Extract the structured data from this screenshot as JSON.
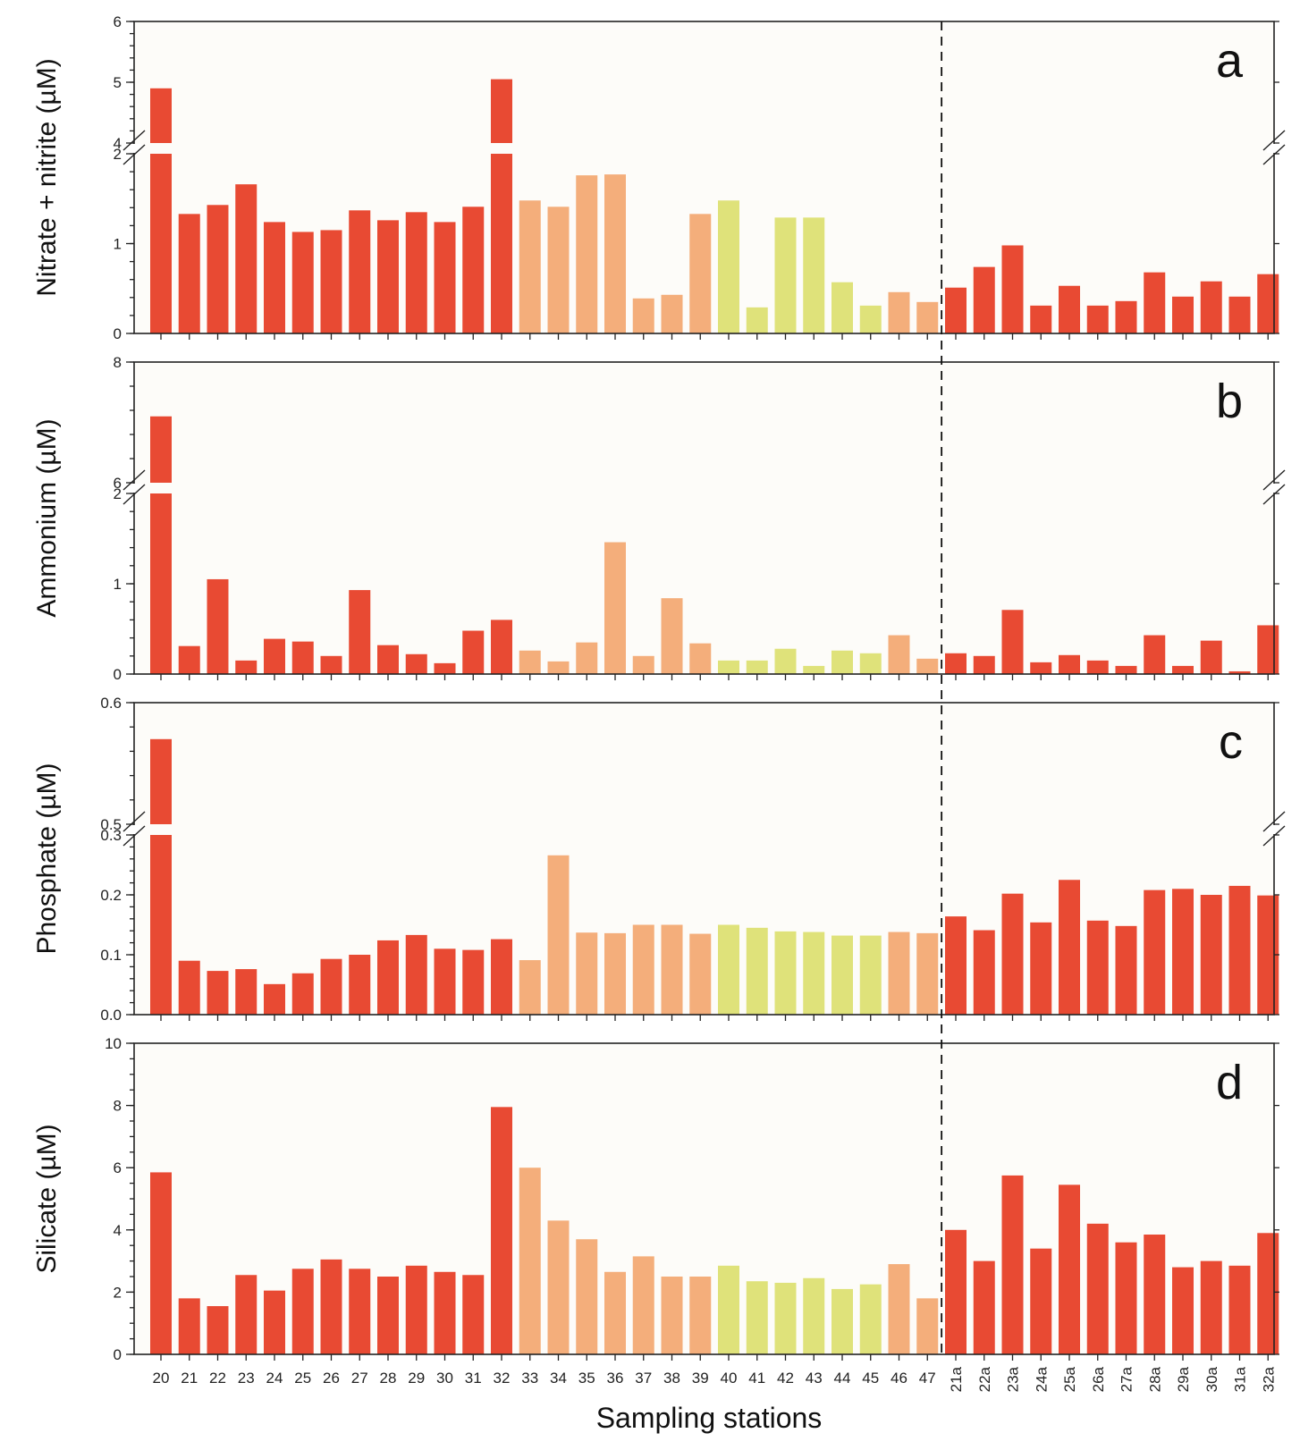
{
  "chart_data": {
    "type": "bar",
    "xlabel": "Sampling stations",
    "categories": [
      "20",
      "21",
      "22",
      "23",
      "24",
      "25",
      "26",
      "27",
      "28",
      "29",
      "30",
      "31",
      "32",
      "33",
      "34",
      "35",
      "36",
      "37",
      "38",
      "39",
      "40",
      "41",
      "42",
      "43",
      "44",
      "45",
      "46",
      "47",
      "21a",
      "22a",
      "23a",
      "24a",
      "25a",
      "26a",
      "27a",
      "28a",
      "29a",
      "30a",
      "31a",
      "32a"
    ],
    "groups": [
      "A",
      "A",
      "A",
      "A",
      "A",
      "A",
      "A",
      "A",
      "A",
      "A",
      "A",
      "A",
      "A",
      "B",
      "B",
      "B",
      "B",
      "B",
      "B",
      "B",
      "C",
      "C",
      "C",
      "C",
      "C",
      "C",
      "B",
      "B",
      "A",
      "A",
      "A",
      "A",
      "A",
      "A",
      "A",
      "A",
      "A",
      "A",
      "A",
      "A"
    ],
    "group_colors": {
      "A": "#e84a33",
      "B": "#f4ae7b",
      "C": "#dfe27a"
    },
    "divider_after_category": "47",
    "panels": [
      {
        "letter": "a",
        "ylabel": "Nitrate + nitrite (µM)",
        "lower_range": [
          0,
          2
        ],
        "upper_range": [
          4,
          6
        ],
        "lower_ticks": [
          "0",
          "1",
          "2"
        ],
        "upper_ticks": [
          "4",
          "5",
          "6"
        ],
        "values": [
          4.9,
          1.33,
          1.43,
          1.66,
          1.24,
          1.13,
          1.15,
          1.37,
          1.26,
          1.35,
          1.24,
          1.41,
          5.05,
          1.48,
          1.41,
          1.76,
          1.77,
          0.39,
          0.43,
          1.33,
          1.48,
          0.29,
          1.29,
          1.29,
          0.57,
          0.31,
          0.46,
          0.35,
          0.51,
          0.74,
          0.98,
          0.31,
          0.53,
          0.31,
          0.36,
          0.68,
          0.41,
          0.58,
          0.41,
          0.66
        ]
      },
      {
        "letter": "b",
        "ylabel": "Ammonium (µM)",
        "lower_range": [
          0,
          2
        ],
        "upper_range": [
          6,
          8
        ],
        "lower_ticks": [
          "0",
          "1",
          "2"
        ],
        "upper_ticks": [
          "6",
          "8"
        ],
        "values": [
          7.1,
          0.31,
          1.05,
          0.15,
          0.39,
          0.36,
          0.2,
          0.93,
          0.32,
          0.22,
          0.12,
          0.48,
          0.6,
          0.26,
          0.14,
          0.35,
          1.46,
          0.2,
          0.84,
          0.34,
          0.15,
          0.15,
          0.28,
          0.09,
          0.26,
          0.23,
          0.43,
          0.17,
          0.23,
          0.2,
          0.71,
          0.13,
          0.21,
          0.15,
          0.09,
          0.43,
          0.09,
          0.37,
          0.03,
          0.54
        ]
      },
      {
        "letter": "c",
        "ylabel": "Phosphate (µM)",
        "lower_range": [
          0,
          0.3
        ],
        "upper_range": [
          0.5,
          0.6
        ],
        "lower_ticks": [
          "0.0",
          "0.1",
          "0.2",
          "0.3"
        ],
        "upper_ticks": [
          "0.5",
          "0.6"
        ],
        "values": [
          0.57,
          0.09,
          0.073,
          0.076,
          0.051,
          0.069,
          0.093,
          0.1,
          0.124,
          0.133,
          0.11,
          0.108,
          0.126,
          0.091,
          0.266,
          0.137,
          0.136,
          0.15,
          0.15,
          0.135,
          0.15,
          0.145,
          0.139,
          0.138,
          0.132,
          0.132,
          0.138,
          0.136,
          0.164,
          0.141,
          0.202,
          0.154,
          0.225,
          0.157,
          0.148,
          0.208,
          0.21,
          0.2,
          0.215,
          0.199
        ]
      },
      {
        "letter": "d",
        "ylabel": "Silicate (µM)",
        "range": [
          0,
          10
        ],
        "ticks": [
          "0",
          "2",
          "4",
          "6",
          "8",
          "10"
        ],
        "values": [
          5.85,
          1.8,
          1.55,
          2.55,
          2.05,
          2.75,
          3.05,
          2.75,
          2.5,
          2.85,
          2.65,
          2.55,
          7.95,
          6.0,
          4.3,
          3.7,
          2.65,
          3.15,
          2.5,
          2.5,
          2.85,
          2.35,
          2.3,
          2.45,
          2.1,
          2.25,
          2.9,
          1.8,
          4.0,
          3.0,
          5.75,
          3.4,
          5.45,
          4.2,
          3.6,
          3.85,
          2.8,
          3.0,
          2.85,
          3.9
        ]
      }
    ]
  }
}
